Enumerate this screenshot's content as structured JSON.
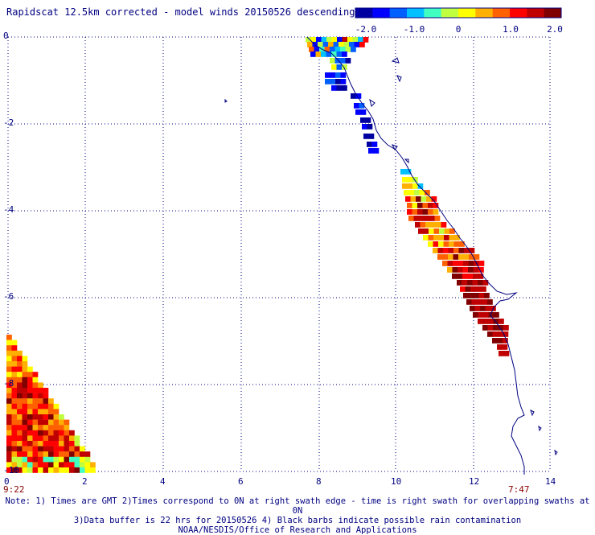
{
  "header": {
    "title": "Rapidscat 12.5km corrected - model winds 20150526 descending"
  },
  "colorbar": {
    "labels": [
      "-2.0",
      "-1.0",
      "0",
      "1.0",
      "2.0"
    ],
    "range": [
      -2.0,
      2.0
    ],
    "colors": [
      "#0000a0",
      "#0000ff",
      "#0060ff",
      "#00c0ff",
      "#40ffc0",
      "#c0ff40",
      "#ffff00",
      "#ffb000",
      "#ff6000",
      "#ff0000",
      "#c00000",
      "#800000"
    ]
  },
  "axes": {
    "x_ticks": [
      "0",
      "2",
      "4",
      "6",
      "8",
      "10",
      "12",
      "14"
    ],
    "y_ticks": [
      "0",
      "-2",
      "-4",
      "-6",
      "-8",
      "-10"
    ],
    "grid": true
  },
  "times": {
    "left": "9:22",
    "right": "7:47"
  },
  "notes": {
    "line1": "Note: 1) Times are GMT 2)Times correspond to 0N at right swath edge - time is right swath for overlapping swaths at 0N",
    "line2": "3)Data buffer is 22 hrs for 20150526 4) Black barbs indicate possible rain contamination",
    "line3": "NOAA/NESDIS/Office of Research and Applications"
  }
}
